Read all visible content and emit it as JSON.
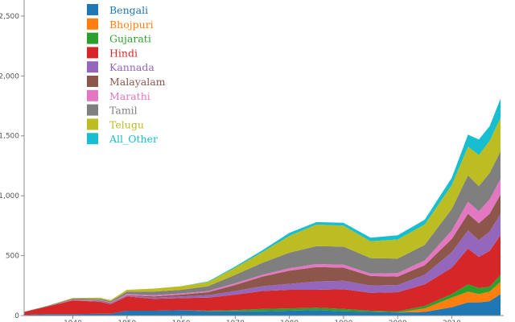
{
  "chart_data": {
    "type": "area",
    "stacked": true,
    "title": "",
    "xlabel": "",
    "ylabel": "",
    "xlim": [
      1931,
      2019
    ],
    "ylim": [
      0,
      2580
    ],
    "y_ticks": [
      0,
      500,
      1000,
      1500,
      2000,
      2500
    ],
    "y_tick_labels": [
      "0",
      "500",
      "1,000",
      "1,500",
      "2,000",
      "2,500"
    ],
    "x_ticks": [
      1940,
      1950,
      1960,
      1970,
      1980,
      1990,
      2000,
      2010
    ],
    "x_tick_labels": [
      "1940",
      "1950",
      "1960",
      "1970",
      "1980",
      "1990",
      "2000",
      "2010"
    ],
    "grid": false,
    "legend_position": "top-left",
    "x": [
      1931,
      1935,
      1940,
      1945,
      1947,
      1950,
      1955,
      1960,
      1965,
      1970,
      1975,
      1980,
      1985,
      1990,
      1995,
      2000,
      2005,
      2010,
      2013,
      2015,
      2017,
      2019
    ],
    "series": [
      {
        "name": "Bengali",
        "color": "#1f77b4",
        "values": [
          5,
          12,
          12,
          15,
          15,
          40,
          40,
          45,
          35,
          35,
          35,
          40,
          45,
          35,
          30,
          25,
          30,
          70,
          110,
          110,
          120,
          180
        ]
      },
      {
        "name": "Bhojpuri",
        "color": "#ff7f0e",
        "values": [
          0,
          0,
          0,
          0,
          0,
          0,
          0,
          0,
          0,
          0,
          0,
          0,
          0,
          0,
          0,
          0,
          30,
          80,
          90,
          70,
          80,
          100
        ]
      },
      {
        "name": "Gujarati",
        "color": "#2ca02c",
        "values": [
          0,
          0,
          0,
          0,
          0,
          0,
          0,
          0,
          5,
          10,
          20,
          20,
          20,
          20,
          10,
          10,
          20,
          30,
          60,
          50,
          40,
          60
        ]
      },
      {
        "name": "Hindi",
        "color": "#d62728",
        "values": [
          25,
          60,
          115,
          100,
          80,
          120,
          100,
          100,
          110,
          130,
          150,
          155,
          150,
          165,
          150,
          160,
          180,
          220,
          300,
          260,
          300,
          330
        ]
      },
      {
        "name": "Kannada",
        "color": "#9467bd",
        "values": [
          0,
          0,
          0,
          5,
          5,
          5,
          10,
          15,
          20,
          30,
          40,
          50,
          70,
          70,
          60,
          60,
          80,
          130,
          150,
          140,
          160,
          180
        ]
      },
      {
        "name": "Malayalam",
        "color": "#8c564b",
        "values": [
          0,
          0,
          0,
          5,
          5,
          5,
          10,
          15,
          25,
          50,
          80,
          110,
          120,
          110,
          80,
          70,
          80,
          110,
          140,
          140,
          150,
          160
        ]
      },
      {
        "name": "Marathi",
        "color": "#e377c2",
        "values": [
          0,
          0,
          5,
          5,
          5,
          10,
          10,
          10,
          10,
          15,
          15,
          20,
          25,
          25,
          20,
          30,
          40,
          70,
          100,
          100,
          120,
          130
        ]
      },
      {
        "name": "Tamil",
        "color": "#7f7f7f",
        "values": [
          2,
          5,
          10,
          10,
          10,
          20,
          30,
          30,
          40,
          70,
          100,
          130,
          150,
          150,
          130,
          120,
          130,
          180,
          220,
          210,
          220,
          230
        ]
      },
      {
        "name": "Telugu",
        "color": "#bcbd22",
        "values": [
          0,
          0,
          5,
          10,
          10,
          15,
          25,
          30,
          35,
          60,
          90,
          140,
          180,
          175,
          140,
          160,
          170,
          200,
          240,
          260,
          270,
          280
        ]
      },
      {
        "name": "All_Other",
        "color": "#17becf",
        "values": [
          0,
          0,
          0,
          0,
          0,
          0,
          0,
          0,
          5,
          10,
          15,
          25,
          20,
          25,
          30,
          35,
          40,
          60,
          100,
          130,
          120,
          160
        ]
      }
    ]
  }
}
